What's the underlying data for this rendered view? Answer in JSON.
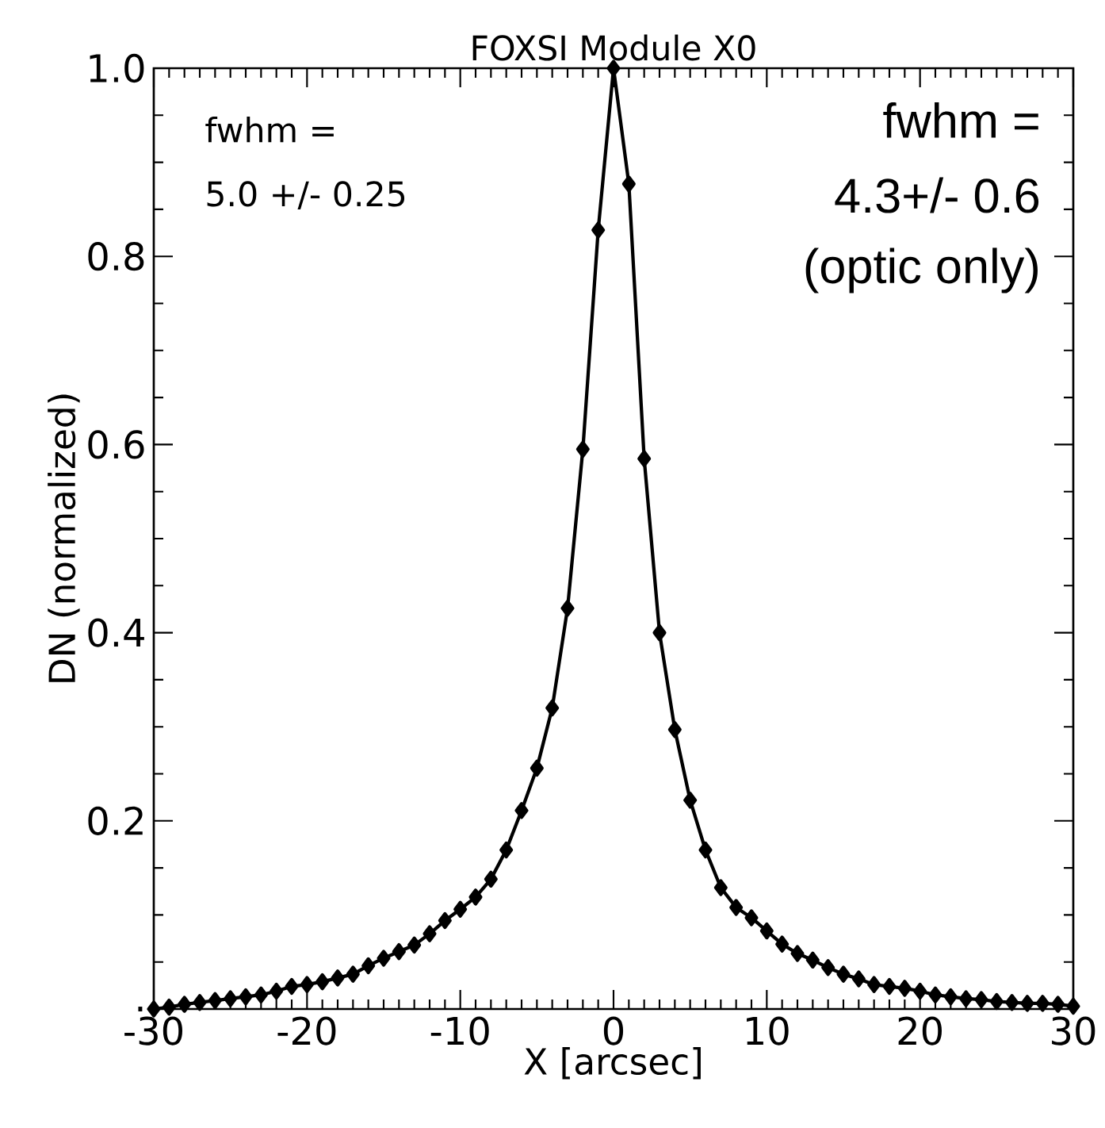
{
  "chart_data": {
    "type": "line",
    "title": "FOXSI Module X0",
    "xlabel": "X [arcsec]",
    "ylabel": "DN (normalized)",
    "x": [
      -30,
      -29,
      -28,
      -27,
      -26,
      -25,
      -24,
      -23,
      -22,
      -21,
      -20,
      -19,
      -18,
      -17,
      -16,
      -15,
      -14,
      -13,
      -12,
      -11,
      -10,
      -9,
      -8,
      -7,
      -6,
      -5,
      -4,
      -3,
      -2,
      -1,
      0,
      1,
      2,
      3,
      4,
      5,
      6,
      7,
      8,
      9,
      10,
      11,
      12,
      13,
      14,
      15,
      16,
      17,
      18,
      19,
      20,
      21,
      22,
      23,
      24,
      25,
      26,
      27,
      28,
      29,
      30
    ],
    "series": [
      {
        "color": "#000000",
        "values": [
          0.0,
          0.002,
          0.005,
          0.007,
          0.009,
          0.011,
          0.013,
          0.015,
          0.019,
          0.024,
          0.026,
          0.029,
          0.033,
          0.037,
          0.046,
          0.054,
          0.061,
          0.068,
          0.08,
          0.094,
          0.106,
          0.119,
          0.138,
          0.169,
          0.211,
          0.256,
          0.32,
          0.426,
          0.595,
          0.828,
          1.0,
          0.877,
          0.585,
          0.4,
          0.297,
          0.222,
          0.169,
          0.129,
          0.108,
          0.097,
          0.083,
          0.069,
          0.059,
          0.052,
          0.044,
          0.037,
          0.032,
          0.026,
          0.024,
          0.022,
          0.019,
          0.015,
          0.013,
          0.011,
          0.01,
          0.008,
          0.007,
          0.006,
          0.006,
          0.005,
          0.003
        ]
      }
    ],
    "xlim": [
      -30,
      30
    ],
    "ylim": [
      0,
      1.0
    ],
    "xticks": [
      -30,
      -20,
      -10,
      0,
      10,
      20,
      30
    ],
    "yticks": [
      {
        "value": 0,
        "label": "."
      },
      0.2,
      0.4,
      0.6,
      0.8,
      {
        "value": 1,
        "label": "1.0"
      }
    ],
    "marker": "diamond",
    "line_style": "solid",
    "grid": false,
    "annotations": [
      "fwhm =",
      "5.0 +/- 0.25",
      "fwhm =",
      "4.3+/- 0.6",
      "(optic only)"
    ]
  }
}
